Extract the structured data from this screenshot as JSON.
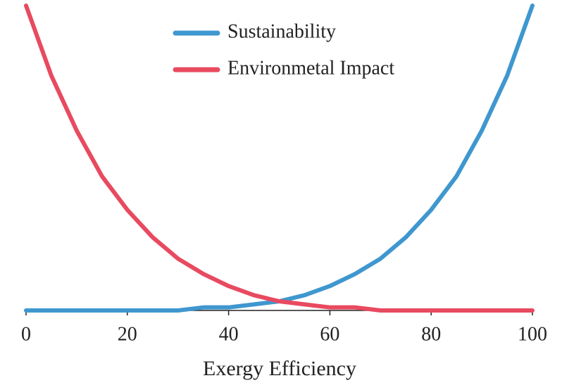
{
  "chart_data": {
    "type": "line",
    "x_label": "Exergy Efficiency",
    "x": [
      0,
      5,
      10,
      15,
      20,
      25,
      30,
      35,
      40,
      45,
      50,
      55,
      60,
      65,
      70,
      75,
      80,
      85,
      90,
      95,
      100
    ],
    "series": [
      {
        "name": "Sustainability",
        "color": "#3f97cf",
        "values": [
          0,
          0,
          0,
          0,
          0,
          0,
          0,
          0.01,
          0.01,
          0.02,
          0.03,
          0.05,
          0.08,
          0.12,
          0.17,
          0.24,
          0.33,
          0.44,
          0.59,
          0.77,
          1
        ]
      },
      {
        "name": "Environmetal Impact",
        "color": "#e84a5f",
        "values": [
          1,
          0.77,
          0.59,
          0.44,
          0.33,
          0.24,
          0.17,
          0.12,
          0.08,
          0.05,
          0.03,
          0.02,
          0.01,
          0.01,
          0,
          0,
          0,
          0,
          0,
          0,
          0
        ]
      }
    ],
    "xlim": [
      0,
      100
    ],
    "xticks": [
      0,
      20,
      40,
      60,
      80,
      100
    ],
    "ylim": [
      0,
      1
    ],
    "legend": "top-center"
  }
}
